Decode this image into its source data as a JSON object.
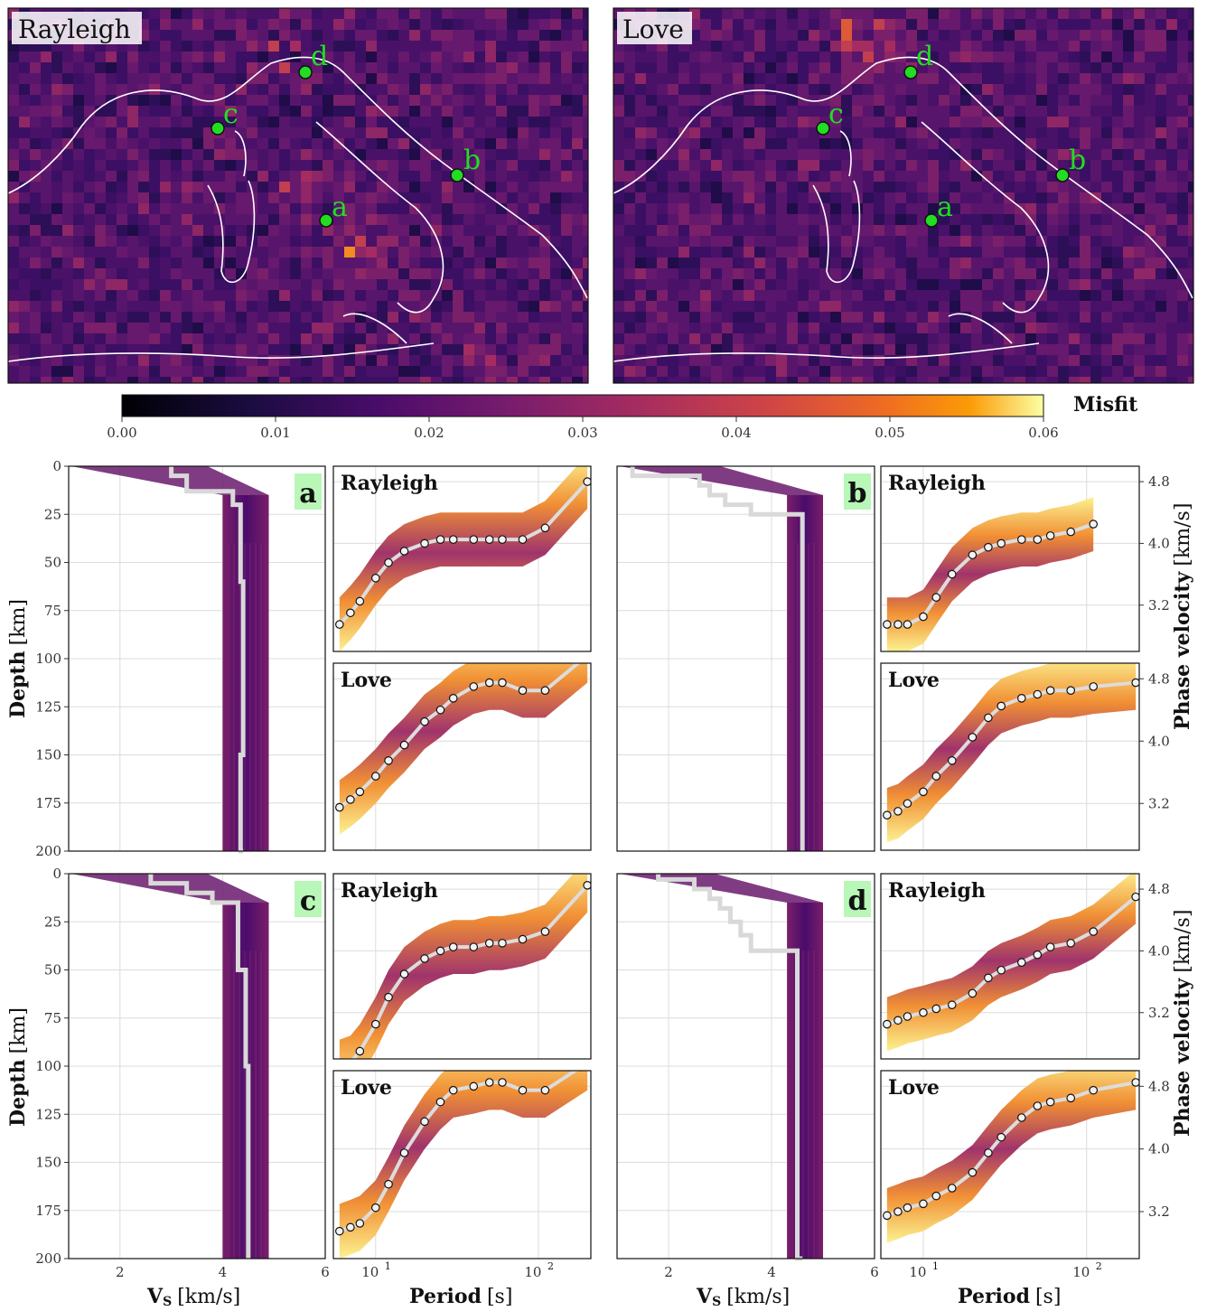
{
  "maps": {
    "rayleigh": {
      "title": "Rayleigh"
    },
    "love": {
      "title": "Love"
    },
    "points": [
      {
        "label": "d"
      },
      {
        "label": "c"
      },
      {
        "label": "b"
      },
      {
        "label": "a"
      }
    ]
  },
  "colorbar": {
    "label": "Misfit",
    "ticks": [
      "0.00",
      "0.01",
      "0.02",
      "0.03",
      "0.04",
      "0.05",
      "0.06"
    ],
    "range": [
      0,
      0.06
    ],
    "colormap": "inferno"
  },
  "axes_text": {
    "depth_label": "Depth",
    "depth_unit": "[km]",
    "vs_label": "V",
    "vs_sub": "S",
    "vs_unit": "[km/s]",
    "period_label": "Period",
    "period_unit": "[s]",
    "phase_label": "Phase velocity",
    "phase_unit": "[km/s]",
    "depth_ticks": [
      "0",
      "25",
      "50",
      "75",
      "100",
      "125",
      "150",
      "175",
      "200"
    ],
    "vs_ticks": [
      "2",
      "4",
      "6"
    ],
    "period_ticks": [
      "10",
      "10"
    ],
    "period_exps": [
      "1",
      "2"
    ],
    "phase_ticks": [
      "4.8",
      "4.0",
      "3.2"
    ]
  },
  "chart_data": [
    {
      "type": "line",
      "panel": "a",
      "mode_labels": [
        "Rayleigh",
        "Love"
      ],
      "vs_profile": {
        "depth": [
          0,
          5,
          12,
          13,
          20,
          40,
          60,
          80,
          100,
          150,
          200
        ],
        "vs": [
          3.0,
          3.3,
          3.3,
          4.2,
          4.35,
          4.35,
          4.4,
          4.4,
          4.4,
          4.35,
          4.4
        ]
      },
      "ensemble_vs_range": [
        4.0,
        4.9
      ],
      "xlim": [
        1,
        6
      ],
      "ylim": [
        200,
        0
      ],
      "rayleigh_period": [
        6,
        7,
        8,
        10,
        12,
        15,
        20,
        25,
        30,
        40,
        50,
        60,
        80,
        110,
        200
      ],
      "rayleigh_velocity": [
        2.95,
        3.1,
        3.25,
        3.55,
        3.75,
        3.9,
        4.0,
        4.05,
        4.05,
        4.05,
        4.05,
        4.05,
        4.05,
        4.2,
        4.8
      ],
      "love_period": [
        6,
        7,
        8,
        10,
        12,
        15,
        20,
        25,
        30,
        40,
        50,
        60,
        80,
        110,
        200
      ],
      "love_velocity": [
        3.15,
        3.25,
        3.35,
        3.55,
        3.75,
        3.95,
        4.25,
        4.4,
        4.55,
        4.7,
        4.75,
        4.75,
        4.65,
        4.65,
        5.1
      ]
    },
    {
      "type": "line",
      "panel": "b",
      "mode_labels": [
        "Rayleigh",
        "Love"
      ],
      "vs_profile": {
        "depth": [
          0,
          5,
          10,
          15,
          20,
          25,
          30,
          200
        ],
        "vs": [
          1.3,
          2.6,
          2.8,
          3.1,
          3.6,
          4.6,
          4.6,
          4.6
        ]
      },
      "ensemble_vs_range": [
        4.3,
        5.0
      ],
      "xlim": [
        1,
        6
      ],
      "ylim": [
        200,
        0
      ],
      "rayleigh_period": [
        6,
        7,
        8,
        10,
        12,
        15,
        20,
        25,
        30,
        40,
        50,
        60,
        80,
        110
      ],
      "rayleigh_velocity": [
        2.95,
        2.95,
        2.95,
        3.05,
        3.3,
        3.6,
        3.85,
        3.95,
        4.0,
        4.05,
        4.05,
        4.1,
        4.15,
        4.25
      ],
      "love_period": [
        6,
        7,
        8,
        10,
        12,
        15,
        20,
        25,
        30,
        40,
        50,
        60,
        80,
        110,
        200
      ],
      "love_velocity": [
        3.05,
        3.1,
        3.2,
        3.35,
        3.55,
        3.75,
        4.05,
        4.3,
        4.45,
        4.55,
        4.6,
        4.65,
        4.65,
        4.7,
        4.75
      ]
    },
    {
      "type": "line",
      "panel": "c",
      "mode_labels": [
        "Rayleigh",
        "Love"
      ],
      "vs_profile": {
        "depth": [
          0,
          5,
          10,
          15,
          20,
          50,
          100,
          200
        ],
        "vs": [
          2.6,
          3.3,
          3.8,
          4.3,
          4.3,
          4.45,
          4.5,
          4.5
        ]
      },
      "ensemble_vs_range": [
        4.0,
        4.9
      ],
      "xlim": [
        1,
        6
      ],
      "ylim": [
        200,
        0
      ],
      "rayleigh_period": [
        6,
        7,
        8,
        10,
        12,
        15,
        20,
        25,
        30,
        40,
        50,
        60,
        80,
        110,
        200
      ],
      "rayleigh_velocity": [
        2.5,
        2.55,
        2.7,
        3.05,
        3.4,
        3.7,
        3.9,
        4.0,
        4.05,
        4.05,
        4.1,
        4.1,
        4.15,
        4.25,
        4.85
      ],
      "love_period": [
        6,
        7,
        8,
        10,
        12,
        15,
        20,
        25,
        30,
        40,
        50,
        60,
        80,
        110,
        200
      ],
      "love_velocity": [
        2.95,
        3.0,
        3.05,
        3.25,
        3.55,
        3.95,
        4.35,
        4.6,
        4.75,
        4.8,
        4.85,
        4.85,
        4.75,
        4.75,
        5.1
      ]
    },
    {
      "type": "line",
      "panel": "d",
      "mode_labels": [
        "Rayleigh",
        "Love"
      ],
      "vs_profile": {
        "depth": [
          0,
          3,
          8,
          13,
          18,
          25,
          32,
          40,
          200
        ],
        "vs": [
          1.8,
          2.5,
          2.8,
          3.0,
          3.2,
          3.4,
          3.6,
          4.5,
          4.6
        ]
      },
      "ensemble_vs_range": [
        4.3,
        5.0
      ],
      "xlim": [
        1,
        6
      ],
      "ylim": [
        200,
        0
      ],
      "rayleigh_period": [
        6,
        7,
        8,
        10,
        12,
        15,
        20,
        25,
        30,
        40,
        50,
        60,
        80,
        110,
        200
      ],
      "rayleigh_velocity": [
        3.05,
        3.1,
        3.15,
        3.2,
        3.25,
        3.3,
        3.45,
        3.65,
        3.75,
        3.85,
        3.95,
        4.05,
        4.1,
        4.25,
        4.7
      ],
      "love_period": [
        6,
        7,
        8,
        10,
        12,
        15,
        20,
        25,
        30,
        40,
        50,
        60,
        80,
        110,
        200
      ],
      "love_velocity": [
        3.15,
        3.2,
        3.25,
        3.3,
        3.4,
        3.5,
        3.7,
        3.95,
        4.15,
        4.4,
        4.55,
        4.6,
        4.65,
        4.75,
        4.85
      ]
    }
  ]
}
